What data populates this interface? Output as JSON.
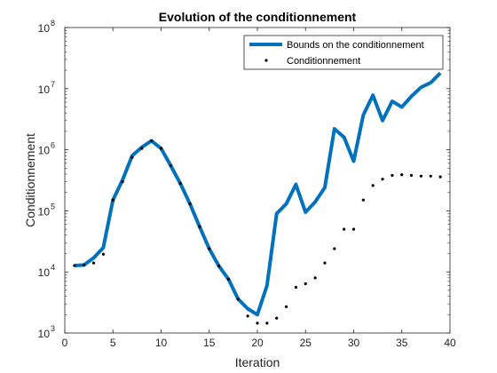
{
  "chart_data": {
    "type": "line",
    "title": "Evolution of the conditionnement",
    "xlabel": "Iteration",
    "ylabel": "Conditionnement",
    "xlim": [
      0,
      40
    ],
    "ylim": [
      1000,
      100000000
    ],
    "yscale": "log",
    "x_ticks": [
      "0",
      "5",
      "10",
      "15",
      "20",
      "25",
      "30",
      "35",
      "40"
    ],
    "y_tick_bases": [
      "10",
      "10",
      "10",
      "10",
      "10",
      "10"
    ],
    "y_tick_exponents": [
      "3",
      "4",
      "5",
      "6",
      "7",
      "8"
    ],
    "y_tick_values": [
      1000,
      10000,
      100000,
      1000000,
      10000000,
      100000000
    ],
    "grid": false,
    "legend_position": "top-right",
    "series": [
      {
        "name": "Bounds on the conditionnement",
        "style": "line",
        "color": "#0072BD",
        "x": [
          1,
          2,
          3,
          4,
          5,
          6,
          7,
          8,
          9,
          10,
          11,
          12,
          13,
          14,
          15,
          16,
          17,
          18,
          19,
          20,
          21,
          22,
          23,
          24,
          25,
          26,
          27,
          28,
          29,
          30,
          31,
          32,
          33,
          34,
          35,
          36,
          37,
          38,
          39
        ],
        "y": [
          12700,
          13000,
          17000,
          25000,
          150000,
          320000,
          800000,
          1100000,
          1400000,
          1050000,
          550000,
          280000,
          130000,
          55000,
          24000,
          12500,
          7600,
          3600,
          2500,
          2000,
          6000,
          90000,
          130000,
          270000,
          95000,
          140000,
          240000,
          2200000,
          1600000,
          650000,
          3700000,
          7800000,
          3000000,
          6200000,
          5000000,
          7500000,
          10500000,
          12500000,
          18000000
        ]
      },
      {
        "name": "Conditionnement",
        "style": "markers",
        "color": "#000000",
        "x": [
          1,
          2,
          3,
          4,
          5,
          6,
          7,
          8,
          9,
          10,
          11,
          12,
          13,
          14,
          15,
          16,
          17,
          18,
          19,
          20,
          21,
          22,
          23,
          24,
          25,
          26,
          27,
          28,
          29,
          30,
          31,
          32,
          33,
          34,
          35,
          36,
          37,
          38,
          39
        ],
        "y": [
          12700,
          13000,
          14000,
          19500,
          150000,
          300000,
          750000,
          1050000,
          1400000,
          1050000,
          550000,
          280000,
          130000,
          55000,
          24000,
          12500,
          7600,
          3600,
          1900,
          1450,
          1450,
          1750,
          2700,
          5600,
          6400,
          8000,
          14000,
          24000,
          50000,
          50000,
          150000,
          260000,
          330000,
          380000,
          390000,
          380000,
          370000,
          370000,
          360000
        ]
      }
    ]
  }
}
